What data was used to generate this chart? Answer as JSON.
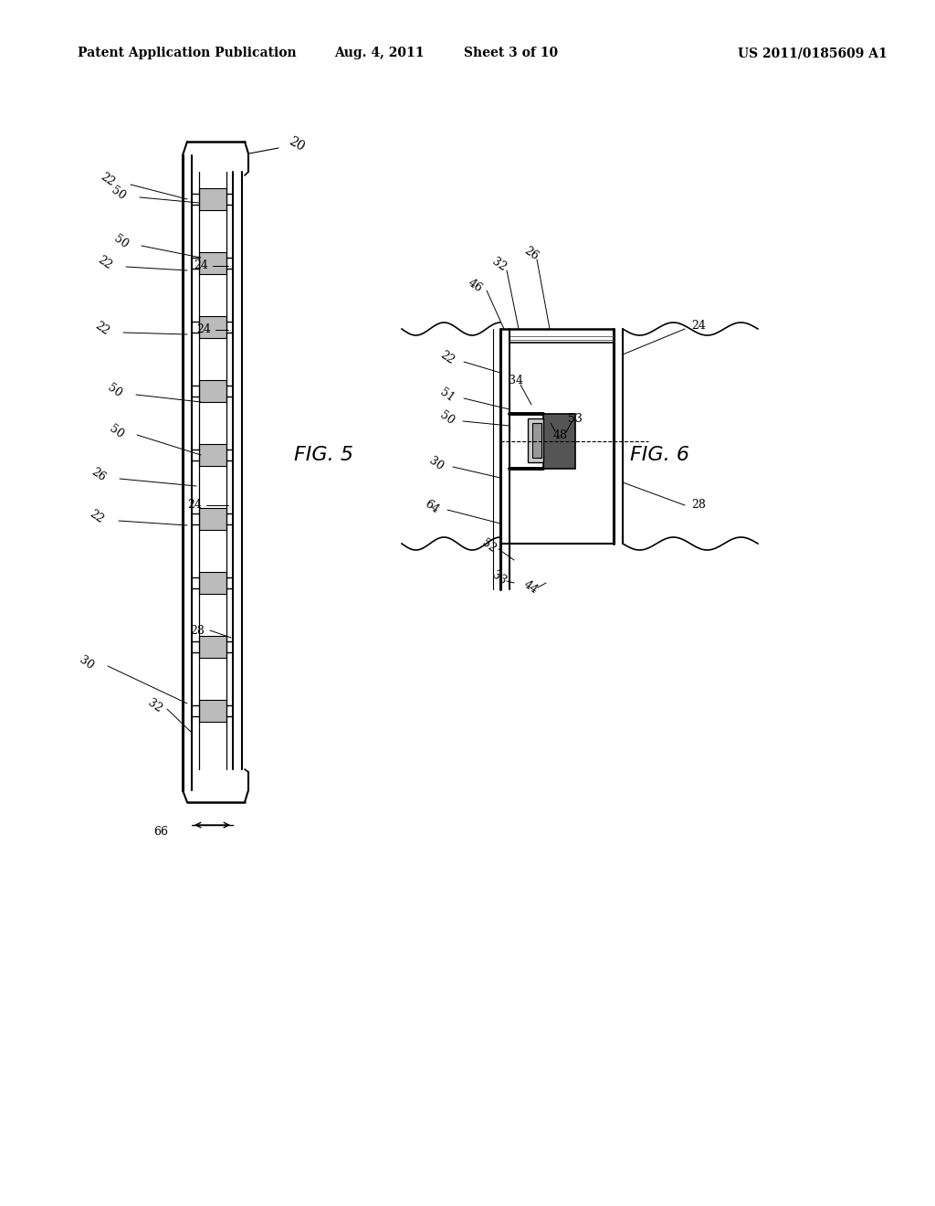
{
  "background_color": "#ffffff",
  "header_text": "Patent Application Publication",
  "header_date": "Aug. 4, 2011",
  "header_sheet": "Sheet 3 of 10",
  "header_patent": "US 2011/0185609 A1",
  "fig5_label": "FIG. 5",
  "fig6_label": "FIG. 6",
  "line_color": "#000000",
  "text_color": "#000000"
}
